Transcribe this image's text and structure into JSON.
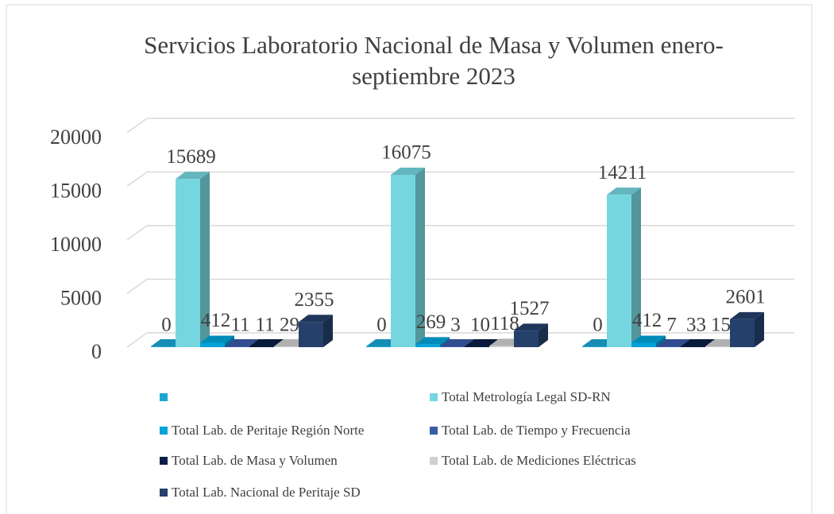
{
  "chart_data": {
    "type": "bar3d",
    "title": [
      "Servicios Laboratorio Nacional de Masa y Volumen enero-",
      "septiembre 2023"
    ],
    "categories": [
      null,
      null,
      null
    ],
    "series": [
      {
        "name": null,
        "color": "#1aa7d4",
        "values": [
          0,
          0,
          0
        ]
      },
      {
        "name": "Total Metrología Legal SD-RN",
        "color": "#76d6df",
        "values": [
          15689,
          16075,
          14211
        ]
      },
      {
        "name": "Total Lab. de Peritaje Región Norte",
        "color": "#00a3da",
        "values": [
          412,
          269,
          412
        ]
      },
      {
        "name": "Total Lab. de Tiempo y Frecuencia",
        "color": "#3a5ba8",
        "values": [
          11,
          3,
          7
        ]
      },
      {
        "name": "Total Lab. de Masa y Volumen",
        "color": "#0a1f45",
        "values": [
          11,
          10,
          33
        ]
      },
      {
        "name": "Total Lab. de Mediciones Eléctricas",
        "color": "#d0d0d0",
        "values": [
          29,
          118,
          15
        ]
      },
      {
        "name": "Total Lab. Nacional de Peritaje SD",
        "color": "#24406b",
        "values": [
          2355,
          1527,
          2601
        ]
      }
    ],
    "ylim": [
      0,
      20000
    ],
    "yticks": [
      0,
      5000,
      10000,
      15000,
      20000
    ],
    "grid": true,
    "legend": "bottom"
  }
}
